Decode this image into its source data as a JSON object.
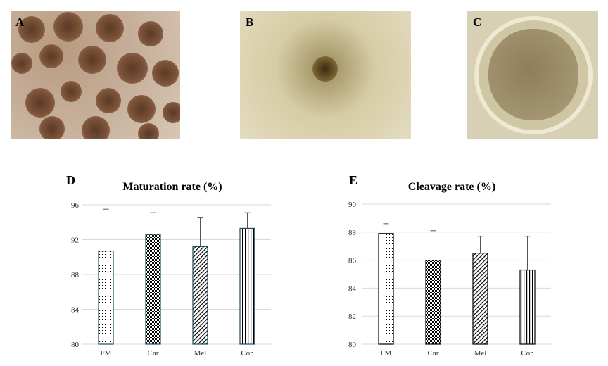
{
  "panels": {
    "A": {
      "label": "A"
    },
    "B": {
      "label": "B"
    },
    "C": {
      "label": "C"
    }
  },
  "chart_data": [
    {
      "panel_label": "D",
      "type": "bar",
      "title": "Maturation rate (%)",
      "categories": [
        "FM",
        "Car",
        "Mel",
        "Con"
      ],
      "values": [
        90.7,
        92.6,
        91.2,
        93.3
      ],
      "error_upper": [
        95.5,
        95.1,
        94.5,
        95.1
      ],
      "patterns": [
        "dots",
        "crosshatch",
        "diagonal",
        "vertical"
      ],
      "ylim": [
        80,
        96
      ],
      "yticks": [
        80,
        84,
        88,
        92,
        96
      ],
      "grid": true,
      "bar_edge_color": "#1f4e5a"
    },
    {
      "panel_label": "E",
      "type": "bar",
      "title": "Cleavage rate (%)",
      "categories": [
        "FM",
        "Car",
        "Mel",
        "Con"
      ],
      "values": [
        87.9,
        86.0,
        86.5,
        85.3
      ],
      "error_upper": [
        88.6,
        88.1,
        87.7,
        87.7
      ],
      "patterns": [
        "dots",
        "crosshatch",
        "diagonal",
        "vertical"
      ],
      "ylim": [
        80,
        90
      ],
      "yticks": [
        80,
        82,
        84,
        86,
        88,
        90
      ],
      "grid": true,
      "bar_edge_color": "#000000"
    }
  ]
}
